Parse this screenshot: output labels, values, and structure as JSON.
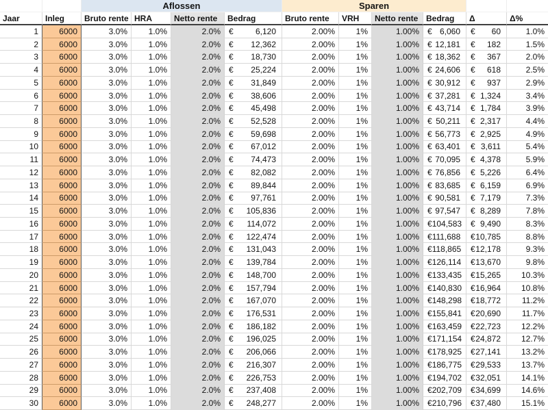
{
  "table": {
    "currency": "€",
    "groups": [
      {
        "label": "Aflossen"
      },
      {
        "label": "Sparen"
      }
    ],
    "columns": [
      {
        "key": "jaar",
        "label": "Jaar",
        "type": "num"
      },
      {
        "key": "inleg",
        "label": "Inleg",
        "type": "num"
      },
      {
        "key": "bruto-rente-aflossen",
        "label": "Bruto rente",
        "type": "pct"
      },
      {
        "key": "hra",
        "label": "HRA",
        "type": "pct"
      },
      {
        "key": "netto-rente-aflossen",
        "label": "Netto rente",
        "type": "pct"
      },
      {
        "key": "bedrag-aflossen",
        "label": "Bedrag",
        "type": "euro"
      },
      {
        "key": "bruto-rente-sparen",
        "label": "Bruto rente",
        "type": "pct"
      },
      {
        "key": "vrh",
        "label": "VRH",
        "type": "pct"
      },
      {
        "key": "netto-rente-sparen",
        "label": "Netto rente",
        "type": "pct"
      },
      {
        "key": "bedrag-sparen",
        "label": "Bedrag",
        "type": "euro"
      },
      {
        "key": "delta",
        "label": "Δ",
        "type": "euro"
      },
      {
        "key": "delta-pct",
        "label": "Δ%",
        "type": "pct"
      }
    ],
    "rows": [
      [
        "1",
        "6000",
        "3.0%",
        "1.0%",
        "2.0%",
        "6,120",
        "2.00%",
        "1%",
        "1.00%",
        "6,060",
        "60",
        "1.0%"
      ],
      [
        "2",
        "6000",
        "3.0%",
        "1.0%",
        "2.0%",
        "12,362",
        "2.00%",
        "1%",
        "1.00%",
        "12,181",
        "182",
        "1.5%"
      ],
      [
        "3",
        "6000",
        "3.0%",
        "1.0%",
        "2.0%",
        "18,730",
        "2.00%",
        "1%",
        "1.00%",
        "18,362",
        "367",
        "2.0%"
      ],
      [
        "4",
        "6000",
        "3.0%",
        "1.0%",
        "2.0%",
        "25,224",
        "2.00%",
        "1%",
        "1.00%",
        "24,606",
        "618",
        "2.5%"
      ],
      [
        "5",
        "6000",
        "3.0%",
        "1.0%",
        "2.0%",
        "31,849",
        "2.00%",
        "1%",
        "1.00%",
        "30,912",
        "937",
        "2.9%"
      ],
      [
        "6",
        "6000",
        "3.0%",
        "1.0%",
        "2.0%",
        "38,606",
        "2.00%",
        "1%",
        "1.00%",
        "37,281",
        "1,324",
        "3.4%"
      ],
      [
        "7",
        "6000",
        "3.0%",
        "1.0%",
        "2.0%",
        "45,498",
        "2.00%",
        "1%",
        "1.00%",
        "43,714",
        "1,784",
        "3.9%"
      ],
      [
        "8",
        "6000",
        "3.0%",
        "1.0%",
        "2.0%",
        "52,528",
        "2.00%",
        "1%",
        "1.00%",
        "50,211",
        "2,317",
        "4.4%"
      ],
      [
        "9",
        "6000",
        "3.0%",
        "1.0%",
        "2.0%",
        "59,698",
        "2.00%",
        "1%",
        "1.00%",
        "56,773",
        "2,925",
        "4.9%"
      ],
      [
        "10",
        "6000",
        "3.0%",
        "1.0%",
        "2.0%",
        "67,012",
        "2.00%",
        "1%",
        "1.00%",
        "63,401",
        "3,611",
        "5.4%"
      ],
      [
        "11",
        "6000",
        "3.0%",
        "1.0%",
        "2.0%",
        "74,473",
        "2.00%",
        "1%",
        "1.00%",
        "70,095",
        "4,378",
        "5.9%"
      ],
      [
        "12",
        "6000",
        "3.0%",
        "1.0%",
        "2.0%",
        "82,082",
        "2.00%",
        "1%",
        "1.00%",
        "76,856",
        "5,226",
        "6.4%"
      ],
      [
        "13",
        "6000",
        "3.0%",
        "1.0%",
        "2.0%",
        "89,844",
        "2.00%",
        "1%",
        "1.00%",
        "83,685",
        "6,159",
        "6.9%"
      ],
      [
        "14",
        "6000",
        "3.0%",
        "1.0%",
        "2.0%",
        "97,761",
        "2.00%",
        "1%",
        "1.00%",
        "90,581",
        "7,179",
        "7.3%"
      ],
      [
        "15",
        "6000",
        "3.0%",
        "1.0%",
        "2.0%",
        "105,836",
        "2.00%",
        "1%",
        "1.00%",
        "97,547",
        "8,289",
        "7.8%"
      ],
      [
        "16",
        "6000",
        "3.0%",
        "1.0%",
        "2.0%",
        "114,072",
        "2.00%",
        "1%",
        "1.00%",
        "104,583",
        "9,490",
        "8.3%"
      ],
      [
        "17",
        "6000",
        "3.0%",
        "1.0%",
        "2.0%",
        "122,474",
        "2.00%",
        "1%",
        "1.00%",
        "111,688",
        "10,785",
        "8.8%"
      ],
      [
        "18",
        "6000",
        "3.0%",
        "1.0%",
        "2.0%",
        "131,043",
        "2.00%",
        "1%",
        "1.00%",
        "118,865",
        "12,178",
        "9.3%"
      ],
      [
        "19",
        "6000",
        "3.0%",
        "1.0%",
        "2.0%",
        "139,784",
        "2.00%",
        "1%",
        "1.00%",
        "126,114",
        "13,670",
        "9.8%"
      ],
      [
        "20",
        "6000",
        "3.0%",
        "1.0%",
        "2.0%",
        "148,700",
        "2.00%",
        "1%",
        "1.00%",
        "133,435",
        "15,265",
        "10.3%"
      ],
      [
        "21",
        "6000",
        "3.0%",
        "1.0%",
        "2.0%",
        "157,794",
        "2.00%",
        "1%",
        "1.00%",
        "140,830",
        "16,964",
        "10.8%"
      ],
      [
        "22",
        "6000",
        "3.0%",
        "1.0%",
        "2.0%",
        "167,070",
        "2.00%",
        "1%",
        "1.00%",
        "148,298",
        "18,772",
        "11.2%"
      ],
      [
        "23",
        "6000",
        "3.0%",
        "1.0%",
        "2.0%",
        "176,531",
        "2.00%",
        "1%",
        "1.00%",
        "155,841",
        "20,690",
        "11.7%"
      ],
      [
        "24",
        "6000",
        "3.0%",
        "1.0%",
        "2.0%",
        "186,182",
        "2.00%",
        "1%",
        "1.00%",
        "163,459",
        "22,723",
        "12.2%"
      ],
      [
        "25",
        "6000",
        "3.0%",
        "1.0%",
        "2.0%",
        "196,025",
        "2.00%",
        "1%",
        "1.00%",
        "171,154",
        "24,872",
        "12.7%"
      ],
      [
        "26",
        "6000",
        "3.0%",
        "1.0%",
        "2.0%",
        "206,066",
        "2.00%",
        "1%",
        "1.00%",
        "178,925",
        "27,141",
        "13.2%"
      ],
      [
        "27",
        "6000",
        "3.0%",
        "1.0%",
        "2.0%",
        "216,307",
        "2.00%",
        "1%",
        "1.00%",
        "186,775",
        "29,533",
        "13.7%"
      ],
      [
        "28",
        "6000",
        "3.0%",
        "1.0%",
        "2.0%",
        "226,753",
        "2.00%",
        "1%",
        "1.00%",
        "194,702",
        "32,051",
        "14.1%"
      ],
      [
        "29",
        "6000",
        "3.0%",
        "1.0%",
        "2.0%",
        "237,408",
        "2.00%",
        "1%",
        "1.00%",
        "202,709",
        "34,699",
        "14.6%"
      ],
      [
        "30",
        "6000",
        "3.0%",
        "1.0%",
        "2.0%",
        "248,277",
        "2.00%",
        "1%",
        "1.00%",
        "210,796",
        "37,480",
        "15.1%"
      ]
    ]
  },
  "colors": {
    "aflossen_group_bg": "#dce6f1",
    "sparen_group_bg": "#fdeccf",
    "inleg_cell_bg": "#fbc998",
    "netto_rente_band_bg": "#dcdcdc",
    "gridline": "#d8d8d8",
    "header_underline": "#3f3f3f"
  }
}
